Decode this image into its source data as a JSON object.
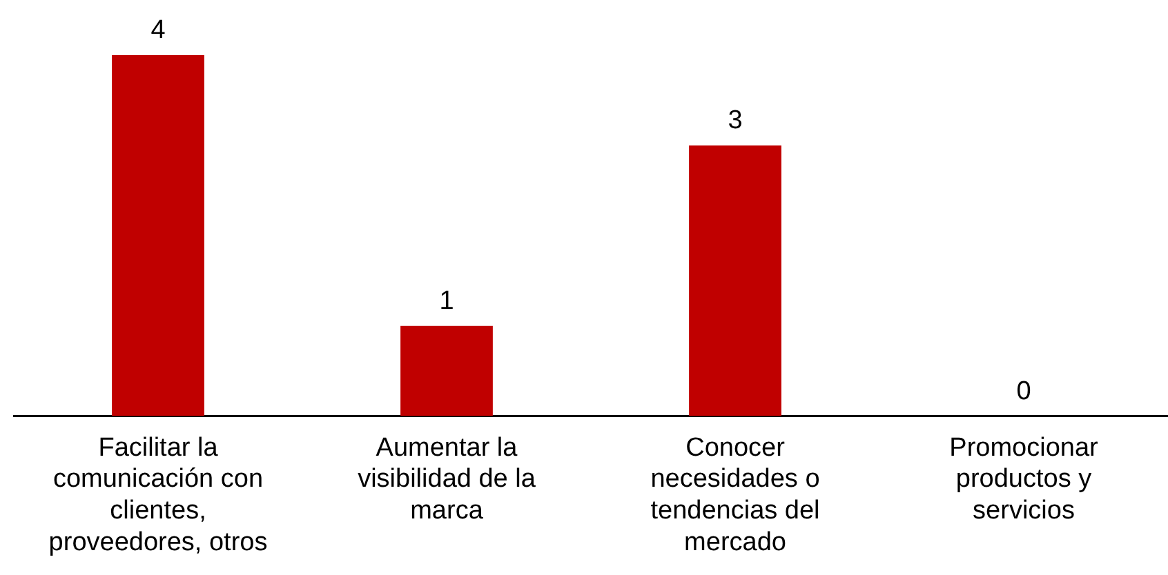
{
  "chart_data": {
    "type": "bar",
    "categories": [
      "Facilitar la comunicación con clientes, proveedores, otros",
      "Aumentar la visibilidad de la marca",
      "Conocer necesidades o tendencias del mercado",
      "Promocionar productos y servicios"
    ],
    "values": [
      4,
      1,
      3,
      0
    ],
    "color": "#c00000",
    "data_labels": true,
    "grid": false,
    "legend": false
  }
}
